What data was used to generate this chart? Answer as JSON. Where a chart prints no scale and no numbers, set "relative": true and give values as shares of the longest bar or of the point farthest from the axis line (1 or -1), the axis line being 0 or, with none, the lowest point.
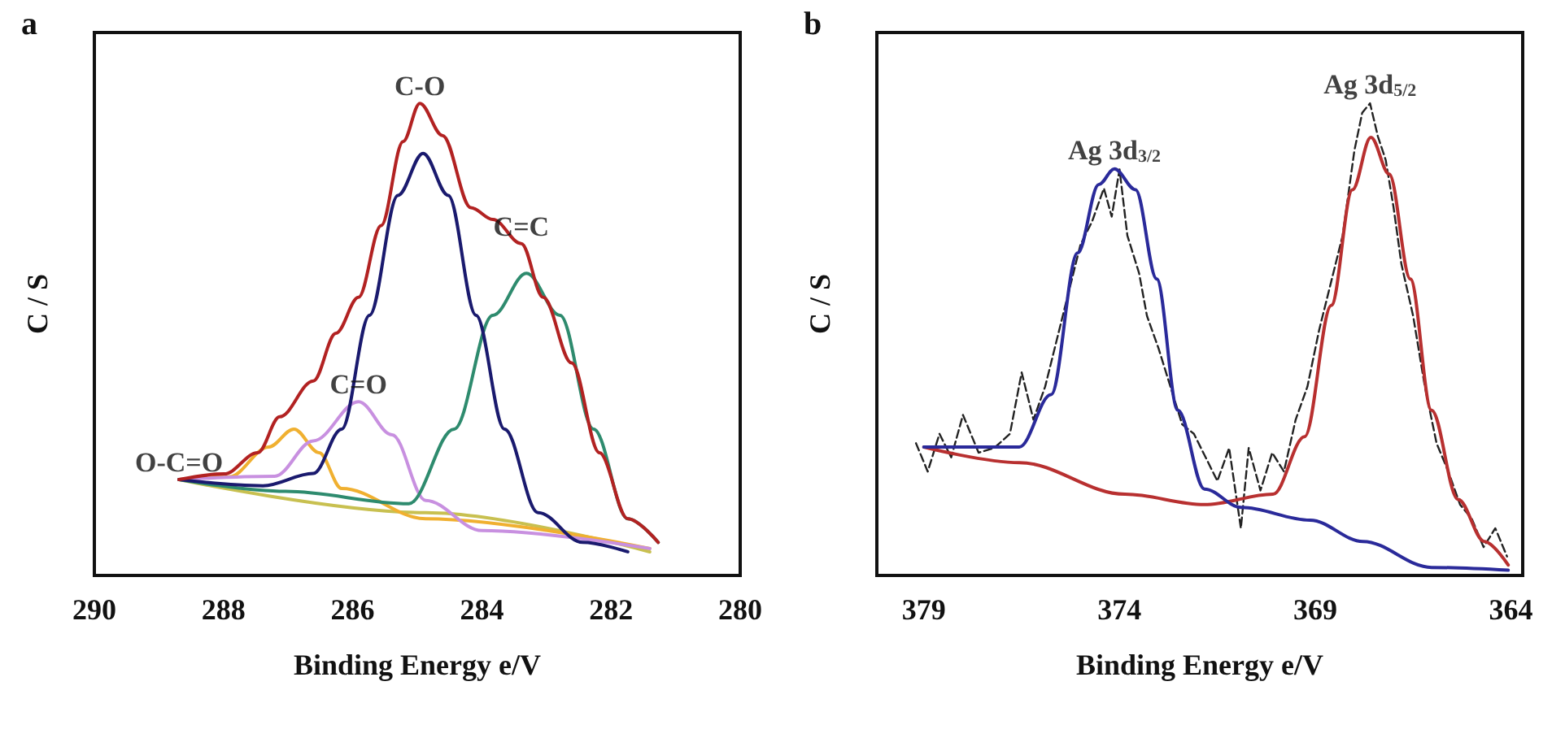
{
  "chart_data": [
    {
      "type": "line",
      "title": "a",
      "xlabel": "Binding Energy e/V",
      "ylabel": "C / S",
      "relative": true,
      "xlim": [
        290,
        280
      ],
      "xticks": [
        290,
        288,
        286,
        284,
        282,
        280
      ],
      "tick_labels": "x",
      "grid": false,
      "marker": "none",
      "line_style": "solid",
      "series": [
        {
          "color": "#c8c050",
          "x": [
            288.69,
            284.87,
            281.4
          ],
          "values": [
            0.203,
            0.133,
            0.05
          ]
        },
        {
          "color": "#f0b030",
          "x": [
            288.69,
            287.91,
            287.3,
            286.91,
            286.52,
            286.17,
            284.87,
            281.4
          ],
          "values": [
            0.203,
            0.209,
            0.272,
            0.31,
            0.26,
            0.184,
            0.12,
            0.057
          ]
        },
        {
          "color": "#c890e0",
          "x": [
            288.69,
            287.21,
            286.61,
            285.91,
            285.39,
            284.87,
            284.0,
            281.4
          ],
          "values": [
            0.203,
            0.21,
            0.285,
            0.368,
            0.298,
            0.159,
            0.095,
            0.057
          ]
        },
        {
          "color": "#2e8b6e",
          "x": [
            288.69,
            287.04,
            285.13,
            284.43,
            283.83,
            283.31,
            282.79,
            282.27,
            281.74,
            281.27
          ],
          "values": [
            0.203,
            0.178,
            0.152,
            0.31,
            0.551,
            0.64,
            0.551,
            0.31,
            0.12,
            0.07
          ]
        },
        {
          "color": "#1a1a6e",
          "x": [
            288.69,
            287.39,
            286.61,
            286.17,
            285.74,
            285.3,
            284.91,
            284.52,
            284.09,
            283.65,
            283.13,
            282.44,
            281.74
          ],
          "values": [
            0.203,
            0.19,
            0.216,
            0.31,
            0.551,
            0.805,
            0.894,
            0.805,
            0.551,
            0.31,
            0.133,
            0.07,
            0.05
          ]
        },
        {
          "color": "#b22222",
          "x": [
            288.69,
            287.99,
            287.47,
            287.13,
            286.61,
            286.26,
            285.91,
            285.56,
            285.22,
            284.96,
            284.61,
            284.17,
            283.83,
            283.39,
            283.05,
            282.61,
            282.18,
            281.74,
            281.27
          ],
          "values": [
            0.203,
            0.215,
            0.26,
            0.336,
            0.412,
            0.513,
            0.589,
            0.741,
            0.919,
            1.0,
            0.932,
            0.779,
            0.754,
            0.703,
            0.589,
            0.45,
            0.26,
            0.12,
            0.07
          ]
        }
      ],
      "annotations": [
        {
          "text": "C-O",
          "x": 284.96,
          "y": 1.0
        },
        {
          "text": "C=C",
          "x": 283.39,
          "y": 0.703
        },
        {
          "text": "C=O",
          "x": 285.91,
          "y": 0.368
        },
        {
          "text": "O-C=O",
          "x": 288.69,
          "y": 0.203
        }
      ]
    },
    {
      "type": "line",
      "title": "b",
      "xlabel": "Binding Energy e/V",
      "ylabel": "C / S",
      "relative": true,
      "xlim": [
        380.2,
        363.7
      ],
      "xticks": [
        379,
        374,
        369,
        364
      ],
      "tick_labels": "x",
      "grid": false,
      "marker": "none",
      "line_style": "solid",
      "series": [
        {
          "color": "#222222",
          "line_style": "dashed",
          "x": [
            379.2,
            378.9,
            378.6,
            378.3,
            378.0,
            377.6,
            377.2,
            376.8,
            376.5,
            376.2,
            375.9,
            375.6,
            375.3,
            375.0,
            374.7,
            374.4,
            374.2,
            374.0,
            373.8,
            373.5,
            373.3,
            373.0,
            372.7,
            372.4,
            372.1,
            371.8,
            371.5,
            371.2,
            370.9,
            370.7,
            370.4,
            370.1,
            369.8,
            369.5,
            369.2,
            368.9,
            368.6,
            368.3,
            368.0,
            367.8,
            367.6,
            367.4,
            367.2,
            367.0,
            366.8,
            366.5,
            366.2,
            365.9,
            365.6,
            365.3,
            365.0,
            364.7,
            364.4,
            364.1
          ],
          "values": [
            0.28,
            0.22,
            0.3,
            0.25,
            0.34,
            0.26,
            0.27,
            0.3,
            0.43,
            0.33,
            0.4,
            0.5,
            0.6,
            0.7,
            0.75,
            0.82,
            0.76,
            0.86,
            0.72,
            0.64,
            0.55,
            0.48,
            0.4,
            0.32,
            0.3,
            0.25,
            0.2,
            0.27,
            0.1,
            0.27,
            0.18,
            0.26,
            0.22,
            0.33,
            0.4,
            0.52,
            0.62,
            0.72,
            0.9,
            0.98,
            1.0,
            0.93,
            0.88,
            0.78,
            0.66,
            0.55,
            0.4,
            0.28,
            0.22,
            0.15,
            0.12,
            0.06,
            0.1,
            0.04
          ]
        },
        {
          "color": "#b83030",
          "x": [
            379.0,
            376.56,
            373.86,
            371.83,
            370.08,
            369.27,
            368.59,
            368.05,
            367.58,
            367.11,
            366.57,
            366.03,
            365.35,
            364.68,
            364.07
          ],
          "values": [
            0.272,
            0.239,
            0.172,
            0.15,
            0.172,
            0.294,
            0.572,
            0.817,
            0.928,
            0.85,
            0.628,
            0.35,
            0.161,
            0.072,
            0.022
          ]
        },
        {
          "color": "#2a2a9a",
          "x": [
            379.0,
            376.56,
            375.75,
            375.07,
            374.53,
            374.13,
            373.59,
            373.05,
            372.51,
            371.83,
            370.89,
            369.13,
            367.78,
            366.03,
            364.07
          ],
          "values": [
            0.272,
            0.272,
            0.383,
            0.683,
            0.828,
            0.861,
            0.817,
            0.628,
            0.35,
            0.183,
            0.144,
            0.117,
            0.072,
            0.017,
            0.011
          ]
        }
      ],
      "annotations": [
        {
          "text": "Ag 3d$_{3/2}$",
          "x": 374.13,
          "y": 0.861
        },
        {
          "text": "Ag 3d$_{5/2}$",
          "x": 367.6,
          "y": 1.0
        }
      ]
    }
  ]
}
